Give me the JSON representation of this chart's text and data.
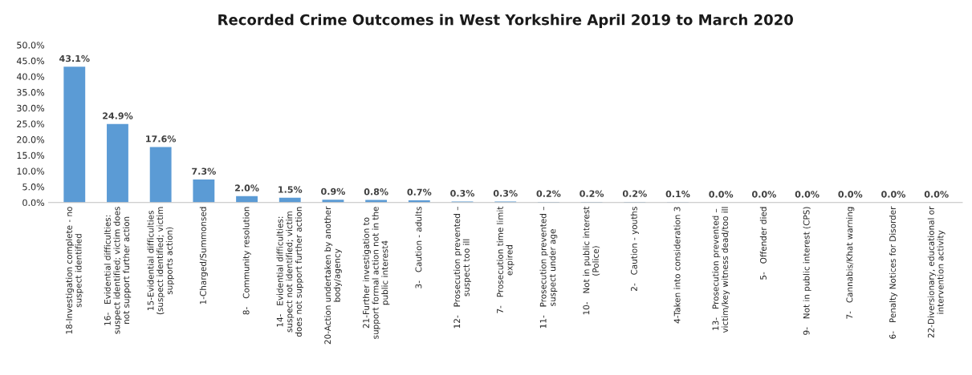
{
  "chart_data": {
    "type": "bar",
    "title": "Recorded Crime Outcomes in West Yorkshire April 2019 to March 2020",
    "categories": [
      "18-Investigation complete - no suspect identified",
      "16-   Evidential difficulties: suspect identified; victim does not support further action",
      "15-Evidential difficulties (suspect identified; victim supports action)",
      "1-Charged/Summonsed",
      "8-   Community resolution",
      "14-   Evidential difficulties: suspect not identified; victim does not support further action",
      "20-Action undertaken by another body/agency",
      "21-Further investigation to support formal action not in the public interest4",
      "3-   Caution - adults",
      "12-   Prosecution prevented – suspect too ill",
      "7-   Prosecution time limit expired",
      "11-   Prosecution prevented – suspect under age",
      "10-   Not in public interest (Police)",
      "2-   Caution - youths",
      "4-Taken into consideration 3",
      "13-   Prosecution prevented – victim/key witness dead/too ill",
      "5-   Offender died",
      "9-   Not in public interest (CPS)",
      "7-   Cannabis/Khat warning",
      "6-   Penalty Notices for Disorder",
      "22-Diversionary, educational or intervention activity"
    ],
    "values": [
      43.1,
      24.9,
      17.6,
      7.3,
      2.0,
      1.5,
      0.9,
      0.8,
      0.7,
      0.3,
      0.3,
      0.2,
      0.2,
      0.2,
      0.1,
      0.0,
      0.0,
      0.0,
      0.0,
      0.0,
      0.0
    ],
    "value_labels": [
      "43.1%",
      "24.9%",
      "17.6%",
      "7.3%",
      "2.0%",
      "1.5%",
      "0.9%",
      "0.8%",
      "0.7%",
      "0.3%",
      "0.3%",
      "0.2%",
      "0.2%",
      "0.2%",
      "0.1%",
      "0.0%",
      "0.0%",
      "0.0%",
      "0.0%",
      "0.0%",
      "0.0%"
    ],
    "color": "#5b9bd5",
    "ylim": [
      0,
      50
    ],
    "yticks": [
      {
        "value": 0,
        "label": "0.0%"
      },
      {
        "value": 5,
        "label": "5.0%"
      },
      {
        "value": 10,
        "label": "10.0%"
      },
      {
        "value": 15,
        "label": "15.0%"
      },
      {
        "value": 20,
        "label": "20.0%"
      },
      {
        "value": 25,
        "label": "25.0%"
      },
      {
        "value": 30,
        "label": "30.0%"
      },
      {
        "value": 35,
        "label": "35.0%"
      },
      {
        "value": 40,
        "label": "40.0%"
      },
      {
        "value": 45,
        "label": "45.0%"
      },
      {
        "value": 50,
        "label": "50.0%"
      }
    ]
  }
}
